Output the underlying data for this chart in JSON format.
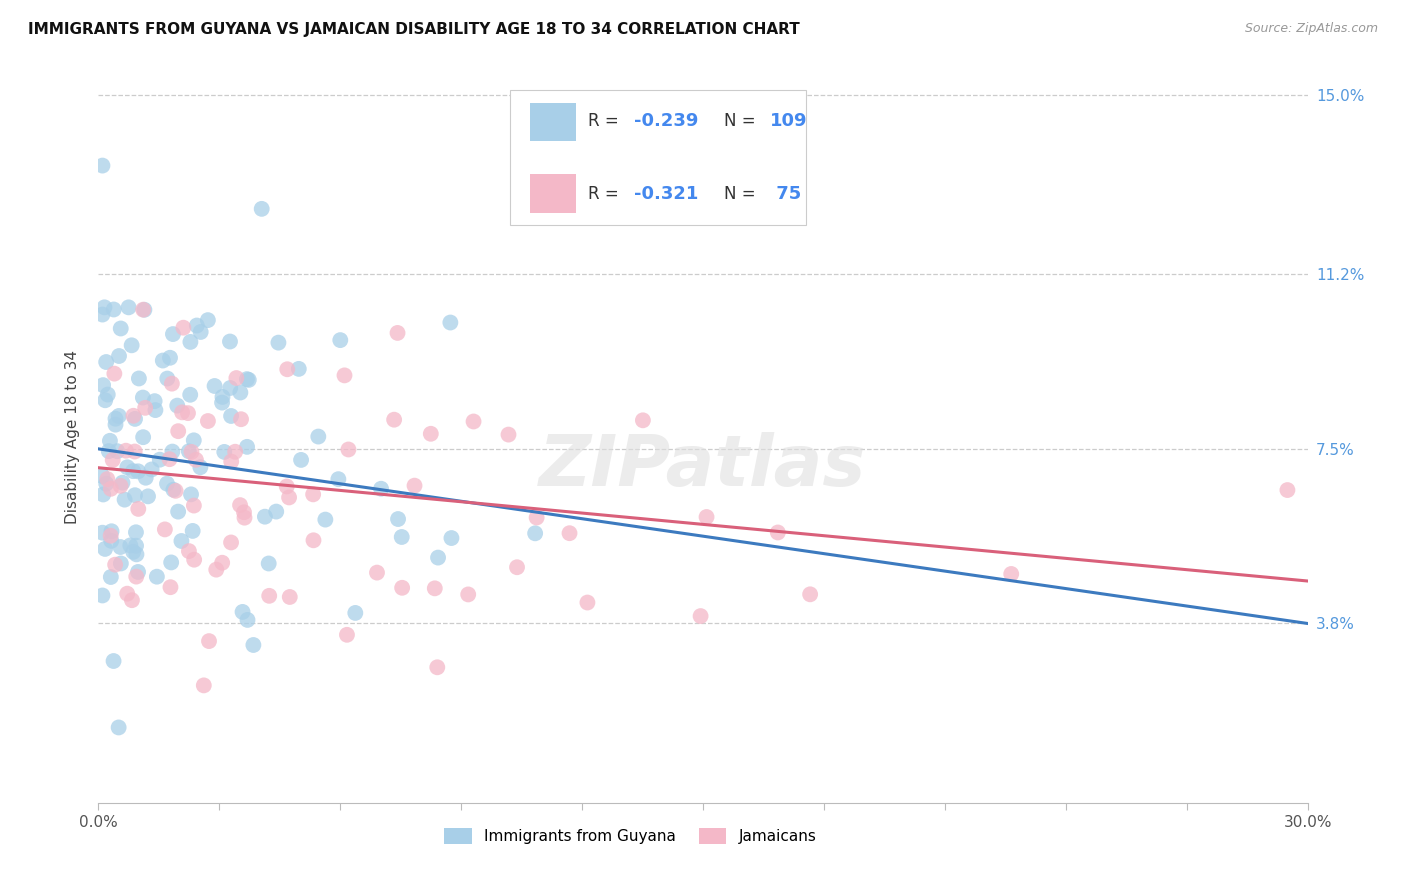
{
  "title": "IMMIGRANTS FROM GUYANA VS JAMAICAN DISABILITY AGE 18 TO 34 CORRELATION CHART",
  "source": "Source: ZipAtlas.com",
  "ylabel": "Disability Age 18 to 34",
  "bg_color": "#ffffff",
  "grid_color": "#cccccc",
  "legend_blue_label": "Immigrants from Guyana",
  "legend_pink_label": "Jamaicans",
  "blue_color": "#a8cfe8",
  "pink_color": "#f4b8c8",
  "line_blue_color": "#3c7abf",
  "line_pink_color": "#d9607a",
  "blue_r": -0.239,
  "blue_n": 109,
  "pink_r": -0.321,
  "pink_n": 75,
  "xmin": 0.0,
  "xmax": 0.3,
  "ymin": 0.0,
  "ymax": 0.155,
  "yticks": [
    0.038,
    0.075,
    0.112,
    0.15
  ],
  "ytick_labels_right": [
    "3.8%",
    "7.5%",
    "11.2%",
    "15.0%"
  ],
  "blue_line_x0": 0.0,
  "blue_line_y0": 0.075,
  "blue_line_x1": 0.3,
  "blue_line_y1": 0.038,
  "pink_line_x0": 0.0,
  "pink_line_y0": 0.071,
  "pink_line_x1": 0.3,
  "pink_line_y1": 0.047
}
